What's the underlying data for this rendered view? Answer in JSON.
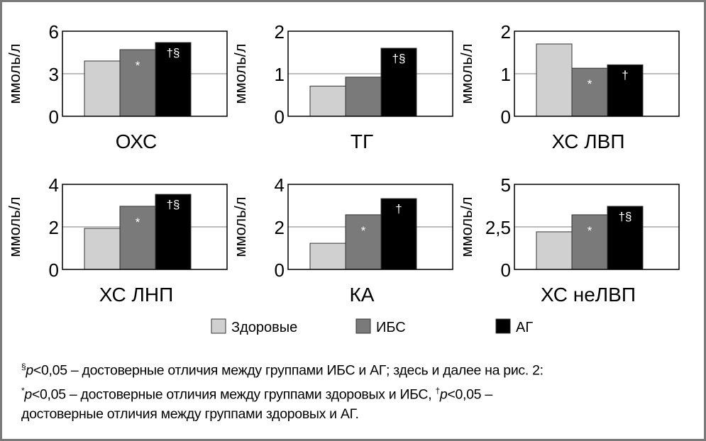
{
  "chart_data": {
    "type": "bar",
    "legend": {
      "placement": "bottom",
      "entries": [
        "Здоровые",
        "ИБС",
        "АГ"
      ]
    },
    "colors": [
      "#d0d0d0",
      "#7a7a7a",
      "#000000"
    ],
    "panels": [
      {
        "title": "ОХС",
        "ylabel": "ммоль/л",
        "ylim": [
          0,
          6
        ],
        "ticks": [
          "0",
          "3",
          "6"
        ],
        "tickvals": [
          0,
          3,
          6
        ],
        "values": [
          3.9,
          4.7,
          5.2
        ],
        "marks": [
          "",
          "*",
          "†§"
        ]
      },
      {
        "title": "ТГ",
        "ylabel": "ммоль/л",
        "ylim": [
          0,
          2
        ],
        "ticks": [
          "0",
          "1",
          "2"
        ],
        "tickvals": [
          0,
          1,
          2
        ],
        "values": [
          0.71,
          0.92,
          1.6
        ],
        "marks": [
          "",
          "",
          "†§"
        ]
      },
      {
        "title": "ХС ЛВП",
        "ylabel": "ммоль/л",
        "ylim": [
          0,
          2
        ],
        "ticks": [
          "0",
          "1",
          "2"
        ],
        "tickvals": [
          0,
          1,
          2
        ],
        "values": [
          1.7,
          1.13,
          1.21
        ],
        "marks": [
          "",
          "*",
          "†"
        ]
      },
      {
        "title": "ХС ЛНП",
        "ylabel": "ммоль/л",
        "ylim": [
          0,
          4
        ],
        "ticks": [
          "0",
          "2",
          "4"
        ],
        "tickvals": [
          0,
          2,
          4
        ],
        "values": [
          1.93,
          2.97,
          3.53
        ],
        "marks": [
          "",
          "*",
          "†§"
        ]
      },
      {
        "title": "КА",
        "ylabel": "ммоль/л",
        "ylim": [
          0,
          4
        ],
        "ticks": [
          "0",
          "2",
          "4"
        ],
        "tickvals": [
          0,
          2,
          4
        ],
        "values": [
          1.23,
          2.57,
          3.33
        ],
        "marks": [
          "",
          "*",
          "†"
        ]
      },
      {
        "title": "ХС неЛВП",
        "ylabel": "ммоль/л",
        "ylim": [
          0,
          5
        ],
        "ticks": [
          "0",
          "2,5",
          "5"
        ],
        "tickvals": [
          0,
          2.5,
          5
        ],
        "values": [
          2.21,
          3.21,
          3.71
        ],
        "marks": [
          "",
          "*",
          "†§"
        ]
      }
    ]
  },
  "footnote": {
    "line1_sup": "§",
    "line1_p": "p",
    "line1": "<0,05 – достоверные отличия между группами ИБС и АГ; здесь и далее на рис. 2:",
    "line2_sup": "*",
    "line2_p": "p",
    "line2": "<0,05 – достоверные отличия между группами здоровых и ИБС, ",
    "line2b_sup": "†",
    "line2b_p": "p",
    "line2b": "<0,05 –",
    "line3": "достоверные отличия между группами здоровых и АГ."
  }
}
